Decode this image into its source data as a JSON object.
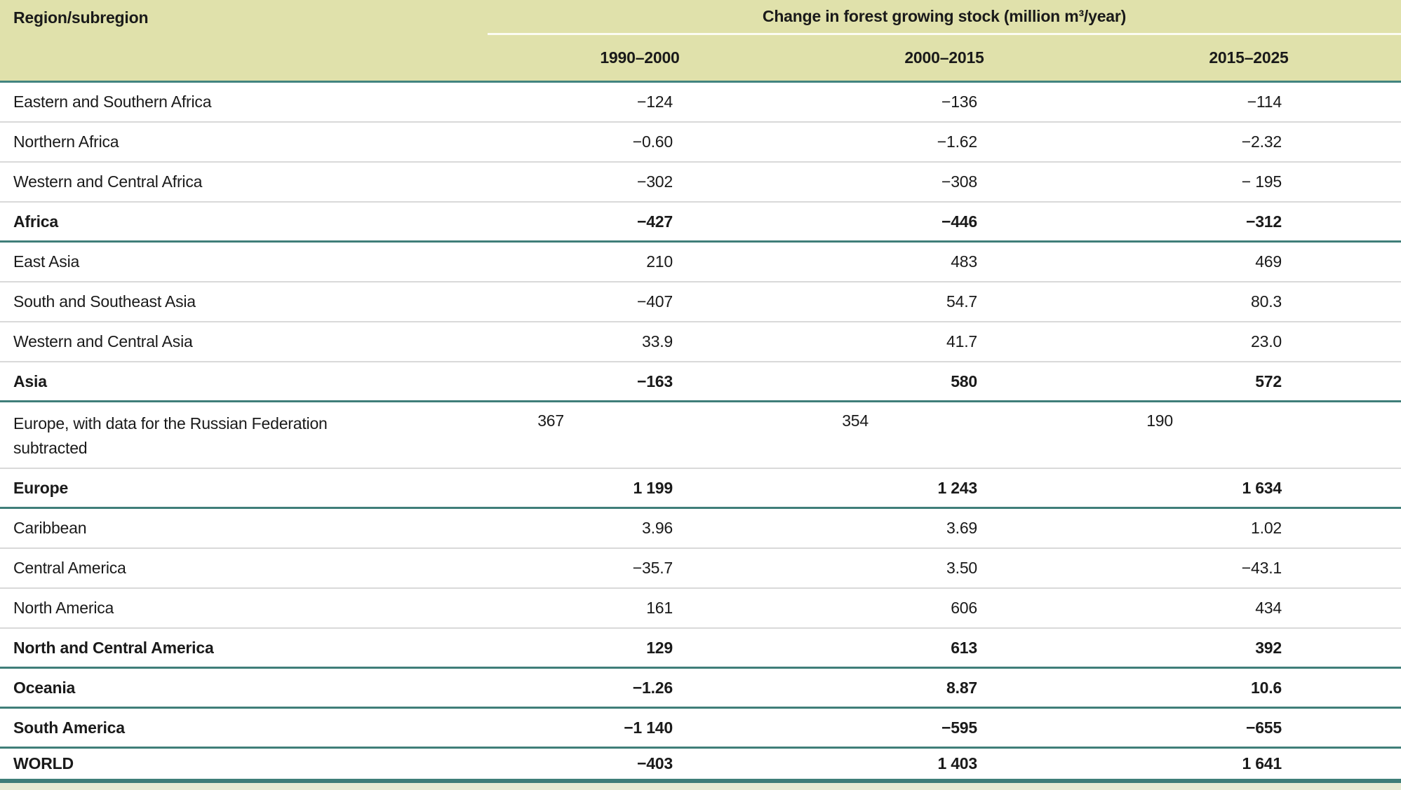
{
  "table": {
    "header": {
      "region_col": "Region/subregion",
      "group": "Change in forest growing stock (million m³/year)",
      "periods": [
        "1990–2000",
        "2000–2015",
        "2015–2025"
      ]
    },
    "rows": [
      {
        "region": "Eastern and Southern Africa",
        "values": [
          "−124",
          "−136",
          "−114"
        ]
      },
      {
        "region": "Northern Africa",
        "values": [
          "−0.60",
          "−1.62",
          "−2.32"
        ]
      },
      {
        "region": "Western and Central Africa",
        "values": [
          "−302",
          "−308",
          "− 195"
        ]
      },
      {
        "region": "Africa",
        "values": [
          "−427",
          "−446",
          "−312"
        ]
      },
      {
        "region": "East Asia",
        "values": [
          "210",
          "483",
          "469"
        ]
      },
      {
        "region": "South and Southeast Asia",
        "values": [
          "−407",
          "54.7",
          "80.3"
        ]
      },
      {
        "region": "Western and Central Asia",
        "values": [
          "33.9",
          "41.7",
          "23.0"
        ]
      },
      {
        "region": "Asia",
        "values": [
          "−163",
          "580",
          "572"
        ]
      },
      {
        "region": "Europe, with data for the Russian Federation subtracted",
        "values": [
          "367",
          "354",
          "190"
        ]
      },
      {
        "region": "Europe",
        "values": [
          "1 199",
          "1 243",
          "1 634"
        ]
      },
      {
        "region": "Caribbean",
        "values": [
          "3.96",
          "3.69",
          "1.02"
        ]
      },
      {
        "region": "Central America",
        "values": [
          "−35.7",
          "3.50",
          "−43.1"
        ]
      },
      {
        "region": "North America",
        "values": [
          "161",
          "606",
          "434"
        ]
      },
      {
        "region": "North and Central America",
        "values": [
          "129",
          "613",
          "392"
        ]
      },
      {
        "region": "Oceania",
        "values": [
          "−1.26",
          "8.87",
          "10.6"
        ]
      },
      {
        "region": "South America",
        "values": [
          "−1 140",
          "−595",
          "−655"
        ]
      },
      {
        "region": "WORLD",
        "values": [
          "−403",
          "1 403",
          "1 641"
        ]
      }
    ],
    "colors": {
      "header_background": "#e0e1ab",
      "section_rule": "#3f7e79",
      "row_rule": "#d9d9d9",
      "bottom_strip": "#e7ebd3"
    }
  }
}
